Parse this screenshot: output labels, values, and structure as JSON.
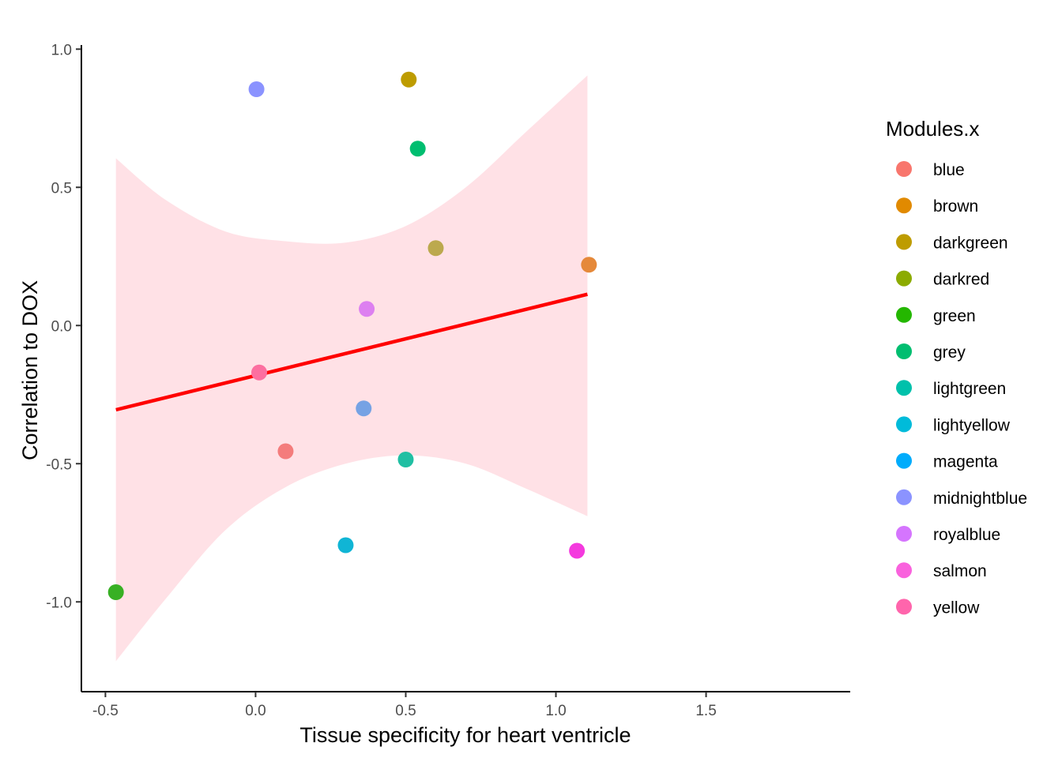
{
  "chart_data": {
    "type": "scatter",
    "title": "",
    "xlabel": "Tissue specificity for heart ventricle",
    "ylabel": "Correlation to DOX",
    "xlim": [
      -0.58,
      1.98
    ],
    "ylim": [
      -1.325,
      1.015
    ],
    "x_ticks": [
      {
        "value": -0.5,
        "label": "-0.5"
      },
      {
        "value": 0.0,
        "label": "0.0"
      },
      {
        "value": 0.5,
        "label": "0.5"
      },
      {
        "value": 1.0,
        "label": "1.0"
      },
      {
        "value": 1.5,
        "label": "1.5"
      }
    ],
    "y_ticks": [
      {
        "value": -1.0,
        "label": "-1.0"
      },
      {
        "value": -0.5,
        "label": "-0.5"
      },
      {
        "value": 0.0,
        "label": "0.0"
      },
      {
        "value": 0.5,
        "label": "0.5"
      },
      {
        "value": 1.0,
        "label": "1.0"
      }
    ],
    "grid": false,
    "legend": {
      "title": "Modules.x",
      "placement": "right",
      "entries": [
        {
          "name": "blue",
          "color": "#F8766D"
        },
        {
          "name": "brown",
          "color": "#E18A00"
        },
        {
          "name": "darkgreen",
          "color": "#BE9C00"
        },
        {
          "name": "darkred",
          "color": "#8CAB00"
        },
        {
          "name": "green",
          "color": "#24B700"
        },
        {
          "name": "grey",
          "color": "#00BE70"
        },
        {
          "name": "lightgreen",
          "color": "#00C1AB"
        },
        {
          "name": "lightyellow",
          "color": "#00BBDA"
        },
        {
          "name": "magenta",
          "color": "#00ACFC"
        },
        {
          "name": "midnightblue",
          "color": "#8B93FF"
        },
        {
          "name": "royalblue",
          "color": "#D575FE"
        },
        {
          "name": "salmon",
          "color": "#F962DD"
        },
        {
          "name": "yellow",
          "color": "#FF65AC"
        }
      ]
    },
    "points": [
      {
        "x": 0.003,
        "y": 0.855,
        "color": "#8B93FF"
      },
      {
        "x": 0.51,
        "y": 0.89,
        "color": "#BE9C00"
      },
      {
        "x": 0.54,
        "y": 0.64,
        "color": "#00BE70"
      },
      {
        "x": 0.6,
        "y": 0.28,
        "color": "#BCA94E"
      },
      {
        "x": 1.11,
        "y": 0.22,
        "color": "#E5893A"
      },
      {
        "x": 0.37,
        "y": 0.06,
        "color": "#DD80F0"
      },
      {
        "x": 0.012,
        "y": -0.17,
        "color": "#FC6FA0"
      },
      {
        "x": 0.36,
        "y": -0.3,
        "color": "#76A2E4"
      },
      {
        "x": 0.1,
        "y": -0.455,
        "color": "#F47C7C"
      },
      {
        "x": 0.5,
        "y": -0.485,
        "color": "#20BFA3"
      },
      {
        "x": 0.3,
        "y": -0.795,
        "color": "#10B5D5"
      },
      {
        "x": 1.07,
        "y": -0.815,
        "color": "#F43ADE"
      },
      {
        "x": -0.465,
        "y": -0.965,
        "color": "#38B024"
      }
    ],
    "fit_line": {
      "color": "#FF0000",
      "x": [
        -0.465,
        1.105
      ],
      "y": [
        -0.305,
        0.113
      ]
    },
    "confidence_band": {
      "color": "#FFC0CB",
      "x": [
        -0.465,
        -0.3,
        -0.1,
        0.1,
        0.3,
        0.5,
        0.7,
        0.9,
        1.105
      ],
      "upper": [
        0.605,
        0.455,
        0.34,
        0.305,
        0.3,
        0.36,
        0.5,
        0.7,
        0.905
      ],
      "lower": [
        -1.215,
        -0.99,
        -0.74,
        -0.585,
        -0.5,
        -0.47,
        -0.5,
        -0.59,
        -0.69
      ]
    }
  }
}
